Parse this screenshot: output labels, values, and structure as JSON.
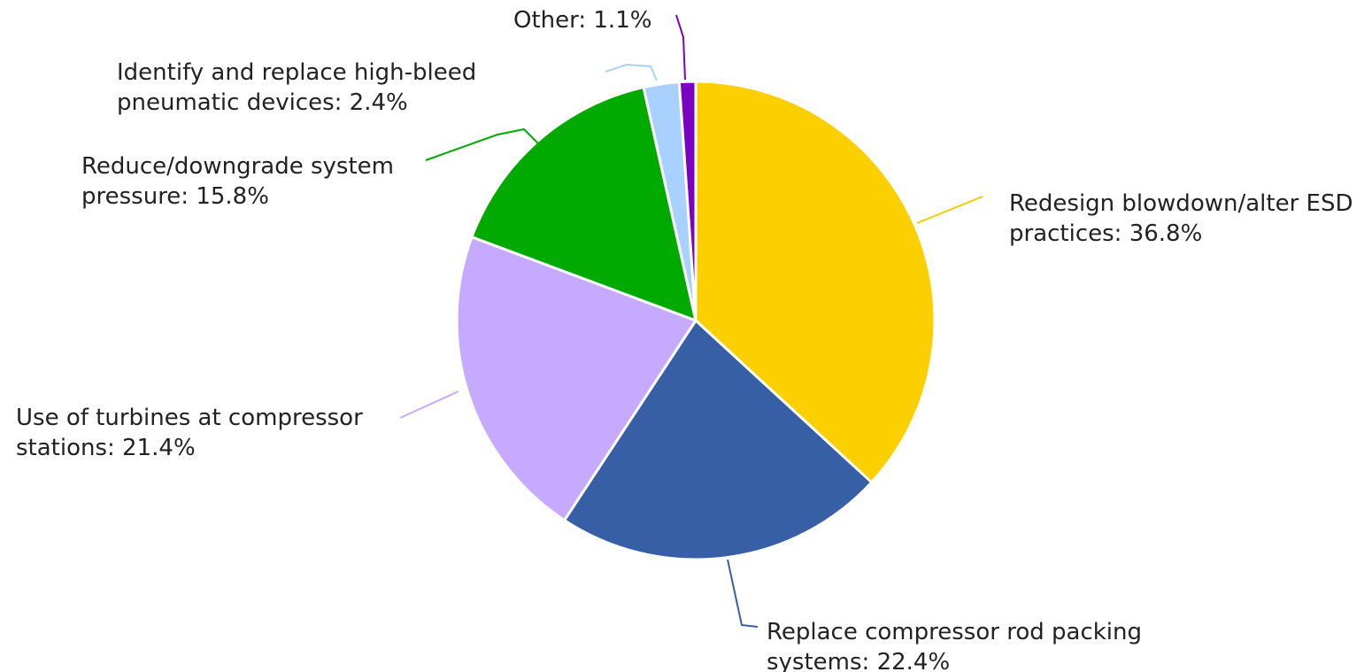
{
  "chart_data": {
    "type": "pie",
    "title": "",
    "slices": [
      {
        "name": "Redesign blowdown/alter ESD practices",
        "value": 36.8,
        "label_lines": [
          "Redesign blowdown/alter ESD",
          "practices: 36.8%"
        ],
        "color": "#fcd000"
      },
      {
        "name": "Replace compressor rod packing systems",
        "value": 22.4,
        "label_lines": [
          "Replace compressor rod packing",
          "systems: 22.4%"
        ],
        "color": "#365fa5"
      },
      {
        "name": "Use of turbines at compressor stations",
        "value": 21.4,
        "label_lines": [
          "Use of turbines at compressor",
          "stations: 21.4%"
        ],
        "color": "#c6aaff"
      },
      {
        "name": "Reduce/downgrade system pressure",
        "value": 15.8,
        "label_lines": [
          "Reduce/downgrade system",
          "pressure: 15.8%"
        ],
        "color": "#00aa00"
      },
      {
        "name": "Identify and replace high-bleed pneumatic devices",
        "value": 2.4,
        "label_lines": [
          "Identify and replace high-bleed",
          "pneumatic devices: 2.4%"
        ],
        "color": "#a9d1ff"
      },
      {
        "name": "Other",
        "value": 1.1,
        "label_lines": [
          "Other: 1.1%"
        ],
        "color": "#7a00c2"
      }
    ]
  }
}
